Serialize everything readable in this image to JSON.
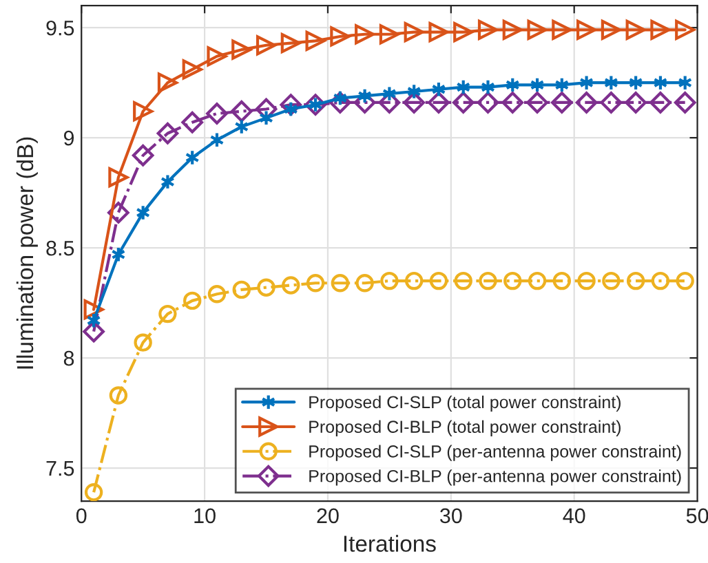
{
  "chart_data": {
    "type": "line",
    "xlabel": "Iterations",
    "ylabel": "Illumination power (dB)",
    "x": [
      1,
      3,
      5,
      7,
      9,
      11,
      13,
      15,
      17,
      19,
      21,
      23,
      25,
      27,
      29,
      31,
      33,
      35,
      37,
      39,
      41,
      43,
      45,
      47,
      49
    ],
    "xlim": [
      0,
      50
    ],
    "xticks": [
      0,
      10,
      20,
      30,
      40,
      50
    ],
    "ylim": [
      7.35,
      9.6
    ],
    "yticks": [
      7.5,
      8,
      8.5,
      9,
      9.5
    ],
    "grid": true,
    "legend": "bottom right",
    "series": [
      {
        "name": "Proposed CI-SLP (total power constraint)",
        "color": "#0072bd",
        "marker": "cross",
        "line_style": "solid",
        "values": [
          8.17,
          8.47,
          8.66,
          8.8,
          8.91,
          8.99,
          9.05,
          9.09,
          9.13,
          9.15,
          9.18,
          9.19,
          9.2,
          9.21,
          9.22,
          9.23,
          9.23,
          9.24,
          9.24,
          9.24,
          9.25,
          9.25,
          9.25,
          9.25,
          9.25
        ]
      },
      {
        "name": "Proposed CI-BLP (total power constraint)",
        "color": "#d95319",
        "marker": "triangle",
        "line_style": "solid",
        "values": [
          8.22,
          8.82,
          9.12,
          9.25,
          9.31,
          9.37,
          9.4,
          9.42,
          9.43,
          9.44,
          9.46,
          9.47,
          9.47,
          9.48,
          9.48,
          9.48,
          9.49,
          9.49,
          9.49,
          9.49,
          9.49,
          9.49,
          9.49,
          9.49,
          9.49
        ]
      },
      {
        "name": "Proposed CI-SLP (per-antenna power constraint)",
        "color": "#edb120",
        "marker": "circle",
        "line_style": "dashdot",
        "values": [
          7.39,
          7.83,
          8.07,
          8.2,
          8.26,
          8.29,
          8.31,
          8.32,
          8.33,
          8.34,
          8.34,
          8.34,
          8.35,
          8.35,
          8.35,
          8.35,
          8.35,
          8.35,
          8.35,
          8.35,
          8.35,
          8.35,
          8.35,
          8.35,
          8.35
        ]
      },
      {
        "name": "Proposed CI-BLP (per-antenna power constraint)",
        "color": "#7e2f8e",
        "marker": "diamond",
        "line_style": "dashdot",
        "values": [
          8.12,
          8.66,
          8.92,
          9.02,
          9.07,
          9.11,
          9.12,
          9.13,
          9.15,
          9.15,
          9.16,
          9.16,
          9.16,
          9.16,
          9.16,
          9.16,
          9.16,
          9.16,
          9.16,
          9.16,
          9.16,
          9.16,
          9.16,
          9.16,
          9.16
        ]
      }
    ]
  }
}
